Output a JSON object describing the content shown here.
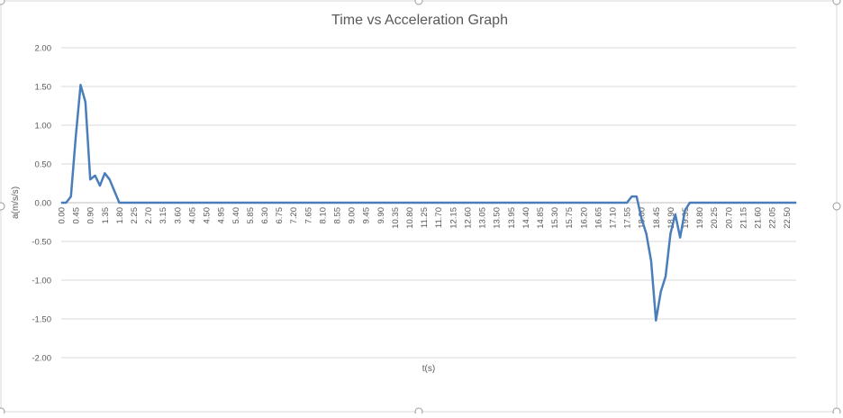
{
  "chart_data": {
    "type": "line",
    "title": "Time vs Acceleration Graph",
    "xlabel": "t(s)",
    "ylabel": "a(m/s/s)",
    "ylim": [
      -2.0,
      2.0
    ],
    "y_ticks": [
      "2.00",
      "1.50",
      "1.00",
      "0.50",
      "0.00",
      "-0.50",
      "-1.00",
      "-1.50",
      "-2.00"
    ],
    "x_step": 0.15,
    "x_tick_every": 3,
    "x_tick_labels": [
      "0.00",
      "0.45",
      "0.90",
      "1.35",
      "1.80",
      "2.25",
      "2.70",
      "3.15",
      "3.60",
      "4.05",
      "4.50",
      "4.95",
      "5.40",
      "5.85",
      "6.30",
      "6.75",
      "7.20",
      "7.65",
      "8.10",
      "8.55",
      "9.00",
      "9.45",
      "9.90",
      "10.35",
      "10.80",
      "11.25",
      "11.70",
      "12.15",
      "12.60",
      "13.05",
      "13.50",
      "13.95",
      "14.40",
      "14.85",
      "15.30",
      "15.75",
      "16.20",
      "16.65",
      "17.10",
      "17.55",
      "18.00",
      "18.45",
      "18.90",
      "19.35",
      "19.80",
      "20.25",
      "20.70",
      "21.15",
      "21.60",
      "22.05",
      "22.50"
    ],
    "grid": true,
    "line_color": "#4a7ebb",
    "series": [
      {
        "name": "",
        "points": [
          [
            0.0,
            0.0
          ],
          [
            0.15,
            0.0
          ],
          [
            0.3,
            0.08
          ],
          [
            0.45,
            0.85
          ],
          [
            0.6,
            1.52
          ],
          [
            0.75,
            1.3
          ],
          [
            0.9,
            0.3
          ],
          [
            1.05,
            0.35
          ],
          [
            1.2,
            0.22
          ],
          [
            1.35,
            0.38
          ],
          [
            1.5,
            0.3
          ],
          [
            1.65,
            0.15
          ],
          [
            1.8,
            0.0
          ],
          [
            17.55,
            0.0
          ],
          [
            17.7,
            0.08
          ],
          [
            17.85,
            0.08
          ],
          [
            18.0,
            -0.2
          ],
          [
            18.15,
            -0.4
          ],
          [
            18.3,
            -0.75
          ],
          [
            18.45,
            -1.52
          ],
          [
            18.6,
            -1.15
          ],
          [
            18.75,
            -0.95
          ],
          [
            18.9,
            -0.4
          ],
          [
            19.05,
            -0.15
          ],
          [
            19.2,
            -0.45
          ],
          [
            19.35,
            -0.1
          ],
          [
            19.5,
            0.0
          ],
          [
            22.8,
            0.0
          ]
        ]
      }
    ]
  }
}
